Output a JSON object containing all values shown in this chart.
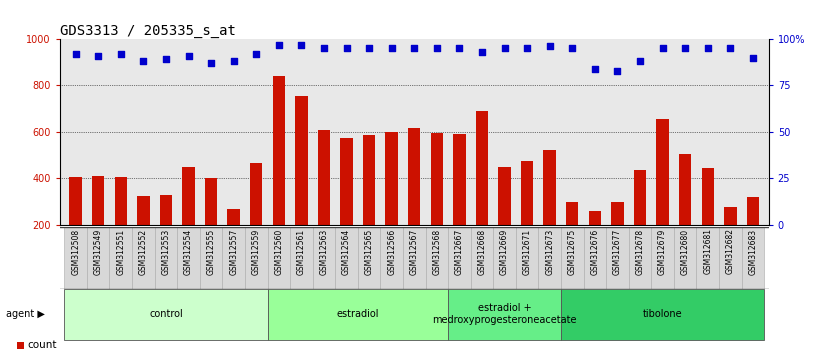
{
  "title": "GDS3313 / 205335_s_at",
  "samples": [
    "GSM312508",
    "GSM312549",
    "GSM312551",
    "GSM312552",
    "GSM312553",
    "GSM312554",
    "GSM312555",
    "GSM312557",
    "GSM312559",
    "GSM312560",
    "GSM312561",
    "GSM312563",
    "GSM312564",
    "GSM312565",
    "GSM312566",
    "GSM312567",
    "GSM312568",
    "GSM312667",
    "GSM312668",
    "GSM312669",
    "GSM312671",
    "GSM312673",
    "GSM312675",
    "GSM312676",
    "GSM312677",
    "GSM312678",
    "GSM312679",
    "GSM312680",
    "GSM312681",
    "GSM312682",
    "GSM312683"
  ],
  "counts": [
    405,
    410,
    405,
    325,
    328,
    450,
    400,
    270,
    465,
    840,
    755,
    608,
    575,
    585,
    600,
    615,
    597,
    590,
    690,
    450,
    475,
    520,
    300,
    258,
    300,
    435,
    655,
    505,
    445,
    275,
    320
  ],
  "percentiles": [
    92,
    91,
    92,
    88,
    89,
    91,
    87,
    88,
    92,
    97,
    97,
    95,
    95,
    95,
    95,
    95,
    95,
    95,
    93,
    95,
    95,
    96,
    95,
    84,
    83,
    88,
    95,
    95,
    95,
    95,
    90
  ],
  "groups": [
    {
      "label": "control",
      "start": 0,
      "end": 9,
      "color": "#ccffcc"
    },
    {
      "label": "estradiol",
      "start": 9,
      "end": 17,
      "color": "#99ff99"
    },
    {
      "label": "estradiol +\nmedroxyprogesteroneacetate",
      "start": 17,
      "end": 22,
      "color": "#66ee88"
    },
    {
      "label": "tibolone",
      "start": 22,
      "end": 31,
      "color": "#33cc66"
    }
  ],
  "bar_color": "#cc1100",
  "dot_color": "#0000cc",
  "ylim_left": [
    200,
    1000
  ],
  "ylim_right_ticks": [
    0,
    25,
    50,
    75,
    100
  ],
  "yticks_left": [
    200,
    400,
    600,
    800,
    1000
  ],
  "grid_vals": [
    400,
    600,
    800
  ],
  "bg_color": "#e8e8e8",
  "title_fontsize": 10,
  "tick_fontsize": 7,
  "bar_width": 0.55
}
